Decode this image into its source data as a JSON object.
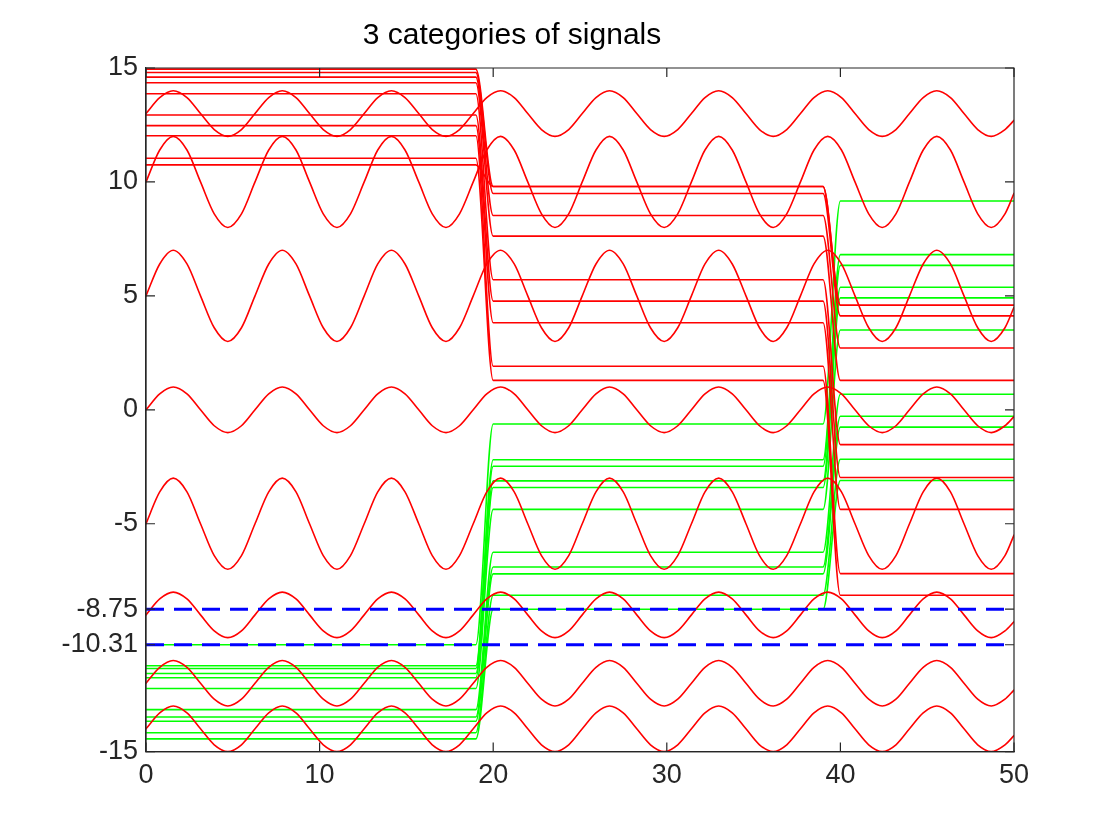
{
  "chart_data": {
    "type": "line",
    "title": "3 categories of signals",
    "x": [
      0,
      0.79,
      1.57,
      2.36,
      3.14,
      3.93,
      4.71,
      5.5,
      6.28,
      7.07,
      7.85,
      8.64,
      9.42,
      10.21,
      11,
      11.78,
      12.57,
      13.35,
      14.14,
      14.92,
      15.71,
      16.49,
      17.28,
      18.06,
      18.85,
      19.63,
      20.42,
      21.21,
      21.99,
      22.78,
      23.56,
      24.35,
      25.13,
      25.92,
      26.7,
      27.49,
      28.27,
      29.06,
      29.85,
      30.63,
      31.42,
      32.2,
      32.99,
      33.77,
      34.56,
      35.34,
      36.13,
      36.91,
      37.7,
      38.48,
      39.27,
      40.06,
      40.84,
      41.63,
      42.41,
      43.2,
      43.98,
      44.77,
      45.55,
      46.34,
      47.12,
      47.91,
      48.69,
      49.48,
      50
    ],
    "xlim": [
      0,
      50
    ],
    "xticks": [
      0,
      10,
      20,
      30,
      40,
      50
    ],
    "ylim": [
      -15,
      15
    ],
    "yticks": [
      -15,
      -10.31,
      -8.75,
      -5,
      0,
      5,
      10,
      15
    ],
    "ref_lines": [
      {
        "axis": "y",
        "value": -8.75,
        "color": "#0000ff",
        "line_style": "dashed"
      },
      {
        "axis": "y",
        "value": -10.31,
        "color": "#0000ff",
        "line_style": "dashed"
      }
    ],
    "series": [
      {
        "color": "#ff0000",
        "values": [
          13,
          13.7,
          14,
          13.7,
          13,
          12.3,
          12,
          12.3,
          13,
          13.7,
          14,
          13.7,
          13,
          12.3,
          12,
          12.3,
          13,
          13.7,
          14,
          13.7,
          13,
          12.3,
          12,
          12.3,
          13,
          13.7,
          14,
          13.7,
          13,
          12.3,
          12,
          12.3,
          13,
          13.7,
          14,
          13.7,
          13,
          12.3,
          12,
          12.3,
          13,
          13.7,
          14,
          13.7,
          13,
          12.3,
          12,
          12.3,
          13,
          13.7,
          14,
          13.7,
          13,
          12.3,
          12,
          12.3,
          13,
          13.7,
          14,
          13.7,
          13,
          12.3,
          12,
          12.3,
          12.7
        ]
      },
      {
        "color": "#ff0000",
        "values": [
          10,
          11.4,
          12,
          11.4,
          10,
          8.6,
          8,
          8.6,
          10,
          11.4,
          12,
          11.4,
          10,
          8.6,
          8,
          8.6,
          10,
          11.4,
          12,
          11.4,
          10,
          8.6,
          8,
          8.6,
          10,
          11.4,
          12,
          11.4,
          10,
          8.6,
          8,
          8.6,
          10,
          11.4,
          12,
          11.4,
          10,
          8.6,
          8,
          8.6,
          10,
          11.4,
          12,
          11.4,
          10,
          8.6,
          8,
          8.6,
          10,
          11.4,
          12,
          11.4,
          10,
          8.6,
          8,
          8.6,
          10,
          11.4,
          12,
          11.4,
          10,
          8.6,
          8,
          8.6,
          9.5
        ]
      },
      {
        "color": "#ff0000",
        "values": [
          5,
          6.4,
          7,
          6.4,
          5,
          3.6,
          3,
          3.6,
          5,
          6.4,
          7,
          6.4,
          5,
          3.6,
          3,
          3.6,
          5,
          6.4,
          7,
          6.4,
          5,
          3.6,
          3,
          3.6,
          5,
          6.4,
          7,
          6.4,
          5,
          3.6,
          3,
          3.6,
          5,
          6.4,
          7,
          6.4,
          5,
          3.6,
          3,
          3.6,
          5,
          6.4,
          7,
          6.4,
          5,
          3.6,
          3,
          3.6,
          5,
          6.4,
          7,
          6.4,
          5,
          3.6,
          3,
          3.6,
          5,
          6.4,
          7,
          6.4,
          5,
          3.6,
          3,
          3.6,
          4.5
        ]
      },
      {
        "color": "#ff0000",
        "values": [
          0,
          0.7,
          1,
          0.7,
          0,
          -0.7,
          -1,
          -0.7,
          0,
          0.7,
          1,
          0.7,
          0,
          -0.7,
          -1,
          -0.7,
          0,
          0.7,
          1,
          0.7,
          0,
          -0.7,
          -1,
          -0.7,
          0,
          0.7,
          1,
          0.7,
          0,
          -0.7,
          -1,
          -0.7,
          0,
          0.7,
          1,
          0.7,
          0,
          -0.7,
          -1,
          -0.7,
          0,
          0.7,
          1,
          0.7,
          0,
          -0.7,
          -1,
          -0.7,
          0,
          0.7,
          1,
          0.7,
          0,
          -0.7,
          -1,
          -0.7,
          0,
          0.7,
          1,
          0.7,
          0,
          -0.7,
          -1,
          -0.7,
          -0.3
        ]
      },
      {
        "color": "#ff0000",
        "values": [
          -5,
          -3.6,
          -3,
          -3.6,
          -5,
          -6.4,
          -7,
          -6.4,
          -5,
          -3.6,
          -3,
          -3.6,
          -5,
          -6.4,
          -7,
          -6.4,
          -5,
          -3.6,
          -3,
          -3.6,
          -5,
          -6.4,
          -7,
          -6.4,
          -5,
          -3.6,
          -3,
          -3.6,
          -5,
          -6.4,
          -7,
          -6.4,
          -5,
          -3.6,
          -3,
          -3.6,
          -5,
          -6.4,
          -7,
          -6.4,
          -5,
          -3.6,
          -3,
          -3.6,
          -5,
          -6.4,
          -7,
          -6.4,
          -5,
          -3.6,
          -3,
          -3.6,
          -5,
          -6.4,
          -7,
          -6.4,
          -5,
          -3.6,
          -3,
          -3.6,
          -5,
          -6.4,
          -7,
          -6.4,
          -5.5
        ]
      },
      {
        "color": "#ff0000",
        "values": [
          -9,
          -8.3,
          -8,
          -8.3,
          -9,
          -9.7,
          -10,
          -9.7,
          -9,
          -8.3,
          -8,
          -8.3,
          -9,
          -9.7,
          -10,
          -9.7,
          -9,
          -8.3,
          -8,
          -8.3,
          -9,
          -9.7,
          -10,
          -9.7,
          -9,
          -8.3,
          -8,
          -8.3,
          -9,
          -9.7,
          -10,
          -9.7,
          -9,
          -8.3,
          -8,
          -8.3,
          -9,
          -9.7,
          -10,
          -9.7,
          -9,
          -8.3,
          -8,
          -8.3,
          -9,
          -9.7,
          -10,
          -9.7,
          -9,
          -8.3,
          -8,
          -8.3,
          -9,
          -9.7,
          -10,
          -9.7,
          -9,
          -8.3,
          -8,
          -8.3,
          -9,
          -9.7,
          -10,
          -9.7,
          -9.3
        ]
      },
      {
        "color": "#ff0000",
        "values": [
          -12,
          -11.3,
          -11,
          -11.3,
          -12,
          -12.7,
          -13,
          -12.7,
          -12,
          -11.3,
          -11,
          -11.3,
          -12,
          -12.7,
          -13,
          -12.7,
          -12,
          -11.3,
          -11,
          -11.3,
          -12,
          -12.7,
          -13,
          -12.7,
          -12,
          -11.3,
          -11,
          -11.3,
          -12,
          -12.7,
          -13,
          -12.7,
          -12,
          -11.3,
          -11,
          -11.3,
          -12,
          -12.7,
          -13,
          -12.7,
          -12,
          -11.3,
          -11,
          -11.3,
          -12,
          -12.7,
          -13,
          -12.7,
          -12,
          -11.3,
          -11,
          -11.3,
          -12,
          -12.7,
          -13,
          -12.7,
          -12,
          -11.3,
          -11,
          -11.3,
          -12,
          -12.7,
          -13,
          -12.7,
          -12.3
        ]
      },
      {
        "color": "#ff0000",
        "values": [
          -14,
          -13.3,
          -13,
          -13.3,
          -14,
          -14.7,
          -15,
          -14.7,
          -14,
          -13.3,
          -13,
          -13.3,
          -14,
          -14.7,
          -15,
          -14.7,
          -14,
          -13.3,
          -13,
          -13.3,
          -14,
          -14.7,
          -15,
          -14.7,
          -14,
          -13.3,
          -13,
          -13.3,
          -14,
          -14.7,
          -15,
          -14.7,
          -14,
          -13.3,
          -13,
          -13.3,
          -14,
          -14.7,
          -15,
          -14.7,
          -14,
          -13.3,
          -13,
          -13.3,
          -14,
          -14.7,
          -15,
          -14.7,
          -14,
          -13.3,
          -13,
          -13.3,
          -14,
          -14.7,
          -15,
          -14.7,
          -14,
          -13.3,
          -13,
          -13.3,
          -14,
          -14.7,
          -15,
          -14.7,
          -14.3
        ]
      },
      {
        "color": "#ff0000",
        "x": [
          0,
          19,
          20,
          39,
          40,
          50
        ],
        "values": [
          14.95,
          14.95,
          9.8,
          9.8,
          4.59,
          4.59
        ]
      },
      {
        "color": "#ff0000",
        "x": [
          0,
          19,
          20,
          39,
          40,
          50
        ],
        "values": [
          14.8,
          14.8,
          9.49,
          9.49,
          4.12,
          4.12
        ]
      },
      {
        "color": "#ff0000",
        "x": [
          0,
          19,
          20,
          39,
          40,
          50
        ],
        "values": [
          14.6,
          14.6,
          8.53,
          8.53,
          2.71,
          2.71
        ]
      },
      {
        "color": "#ff0000",
        "x": [
          0,
          19,
          20,
          39,
          40,
          50
        ],
        "values": [
          14.35,
          14.35,
          7.62,
          7.62,
          1.29,
          1.29
        ]
      },
      {
        "color": "#ff0000",
        "x": [
          0,
          19,
          20,
          39,
          40,
          50
        ],
        "values": [
          13.87,
          13.87,
          5.71,
          5.71,
          -1.53,
          -1.53
        ]
      },
      {
        "color": "#ff0000",
        "x": [
          0,
          19,
          20,
          39,
          40,
          50
        ],
        "values": [
          12.94,
          12.94,
          4.77,
          4.77,
          -2.97,
          -2.97
        ]
      },
      {
        "color": "#ff0000",
        "x": [
          0,
          19,
          20,
          39,
          40,
          50
        ],
        "values": [
          12.47,
          12.47,
          3.82,
          3.82,
          -4.37,
          -4.37
        ]
      },
      {
        "color": "#ff0000",
        "x": [
          0,
          19,
          20,
          39,
          40,
          50
        ],
        "values": [
          12.03,
          12.03,
          1.91,
          1.91,
          -7.19,
          -7.19
        ]
      },
      {
        "color": "#ff0000",
        "x": [
          0,
          19,
          20,
          39,
          40,
          50
        ],
        "values": [
          11.04,
          11.04,
          1.29,
          1.29,
          -8.14,
          -8.14
        ]
      },
      {
        "color": "#ff0000",
        "x": [
          0,
          19,
          20,
          39,
          40,
          50
        ],
        "values": [
          10.75,
          10.75,
          9.8,
          9.8,
          4.59,
          4.59
        ]
      },
      {
        "color": "#00ff00",
        "x": [
          0,
          19,
          20,
          39,
          40,
          50
        ],
        "values": [
          -10.31,
          -10.31,
          -0.62,
          -0.62,
          9.16,
          9.16
        ]
      },
      {
        "color": "#00ff00",
        "x": [
          0,
          19,
          20,
          39,
          40,
          50
        ],
        "values": [
          -11.23,
          -11.23,
          -2.19,
          -2.19,
          6.81,
          6.81
        ]
      },
      {
        "color": "#00ff00",
        "x": [
          0,
          19,
          20,
          39,
          40,
          50
        ],
        "values": [
          -11.35,
          -11.35,
          -2.48,
          -2.48,
          6.34,
          6.34
        ]
      },
      {
        "color": "#00ff00",
        "x": [
          0,
          19,
          20,
          39,
          40,
          50
        ],
        "values": [
          -11.57,
          -11.57,
          -3.12,
          -3.12,
          5.38,
          5.38
        ]
      },
      {
        "color": "#00ff00",
        "x": [
          0,
          19,
          20,
          39,
          40,
          50
        ],
        "values": [
          -11.76,
          -11.76,
          -3.41,
          -3.41,
          4.91,
          4.91
        ]
      },
      {
        "color": "#00ff00",
        "x": [
          0,
          19,
          20,
          39,
          40,
          50
        ],
        "values": [
          -12.23,
          -12.23,
          -4.37,
          -4.37,
          3.5,
          3.5
        ]
      },
      {
        "color": "#00ff00",
        "x": [
          0,
          19,
          20,
          39,
          40,
          50
        ],
        "values": [
          -13.16,
          -13.16,
          -6.25,
          -6.25,
          0.68,
          0.68
        ]
      },
      {
        "color": "#00ff00",
        "x": [
          0,
          19,
          20,
          39,
          40,
          50
        ],
        "values": [
          -13.48,
          -13.48,
          -6.9,
          -6.9,
          -0.28,
          -0.28
        ]
      },
      {
        "color": "#00ff00",
        "x": [
          0,
          19,
          20,
          39,
          40,
          50
        ],
        "values": [
          -13.67,
          -13.67,
          -7.2,
          -7.2,
          -0.76,
          -0.76
        ]
      },
      {
        "color": "#00ff00",
        "x": [
          0,
          19,
          20,
          39,
          40,
          50
        ],
        "values": [
          -14.17,
          -14.17,
          -8.14,
          -8.14,
          -2.17,
          -2.17
        ]
      },
      {
        "color": "#00ff00",
        "x": [
          0,
          19,
          20,
          39,
          40,
          50
        ],
        "values": [
          -14.44,
          -14.44,
          -8.75,
          -8.75,
          -3.1,
          -3.1
        ]
      }
    ]
  }
}
